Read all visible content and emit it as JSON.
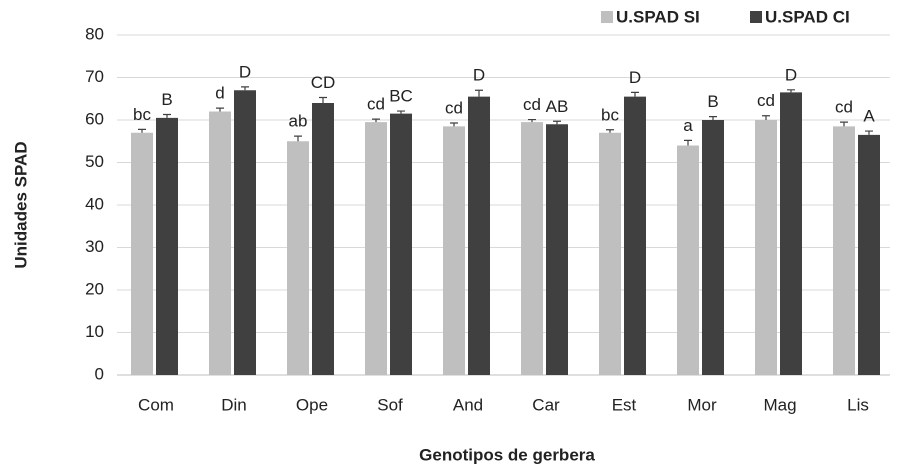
{
  "chart_data": {
    "type": "bar",
    "x_label": "Genotipos de gerbera",
    "y_label": "Unidades SPAD",
    "categories": [
      "Com",
      "Din",
      "Ope",
      "Sof",
      "And",
      "Car",
      "Est",
      "Mor",
      "Mag",
      "Lis"
    ],
    "series": [
      {
        "name": "U.SPAD SI",
        "color": "#bfbfbf",
        "values": [
          57,
          62,
          55,
          59.5,
          58.5,
          59.5,
          57,
          54,
          60,
          58.5
        ],
        "errors": [
          0.8,
          0.8,
          1.2,
          0.7,
          0.8,
          0.6,
          0.7,
          1.2,
          1.0,
          1.0
        ],
        "letters": [
          "bc",
          "d",
          "ab",
          "cd",
          "cd",
          "cd",
          "bc",
          "a",
          "cd",
          "cd"
        ]
      },
      {
        "name": "U.SPAD CI",
        "color": "#404040",
        "values": [
          60.5,
          67,
          64,
          61.5,
          65.5,
          59,
          65.5,
          60,
          66.5,
          56.5
        ],
        "errors": [
          0.8,
          0.8,
          1.3,
          0.6,
          1.5,
          0.7,
          1.0,
          0.8,
          0.6,
          0.9
        ],
        "letters": [
          "B",
          "D",
          "CD",
          "BC",
          "D",
          "AB",
          "D",
          "B",
          "D",
          "A"
        ]
      }
    ],
    "ylim": [
      0,
      80
    ],
    "yticks": [
      0,
      10,
      20,
      30,
      40,
      50,
      60,
      70,
      80
    ],
    "grid": true,
    "legend": "top-right"
  }
}
